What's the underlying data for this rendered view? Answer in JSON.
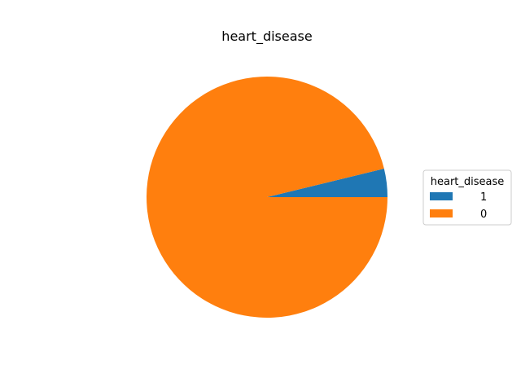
{
  "chart_data": {
    "type": "pie",
    "title": "heart_disease",
    "categories": [
      "1",
      "0"
    ],
    "values": [
      3.8,
      96.2
    ],
    "colors": [
      "#1f77b4",
      "#ff7f0e"
    ],
    "legend": {
      "title": "heart_disease",
      "placement": "right",
      "entries": [
        "1",
        "0"
      ]
    },
    "start_angle_deg": 0,
    "direction": "counterclockwise"
  }
}
